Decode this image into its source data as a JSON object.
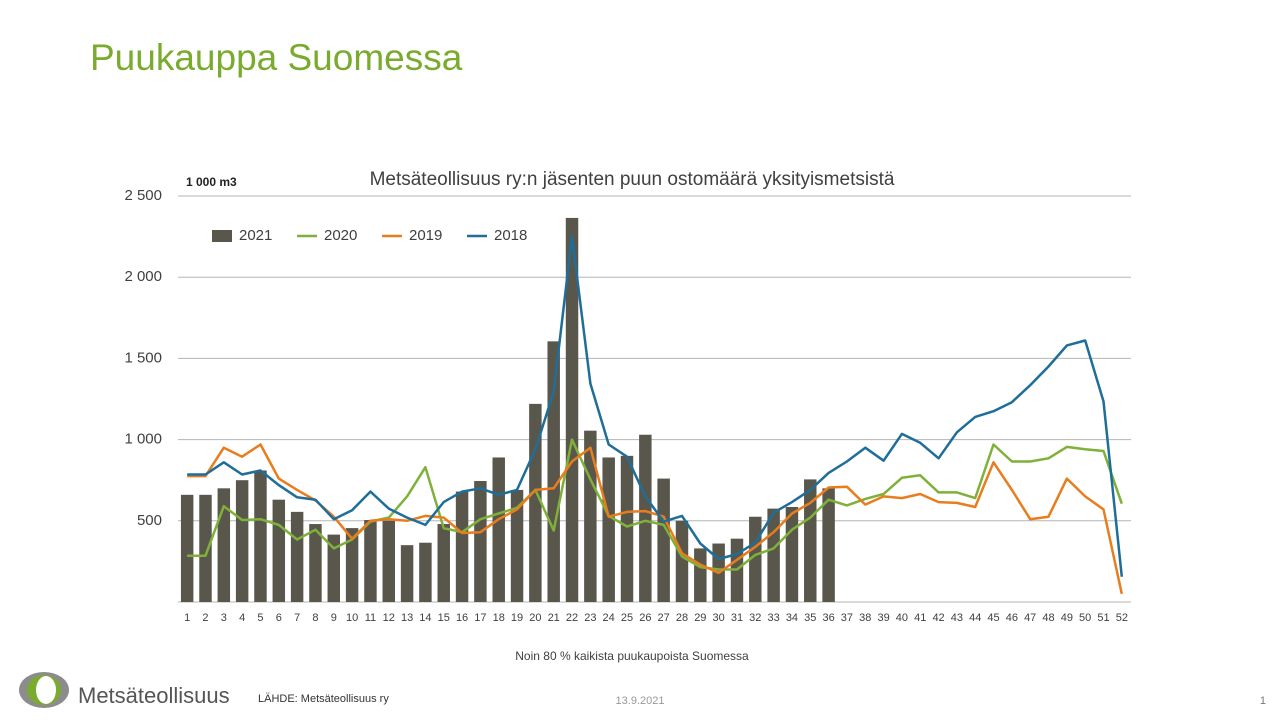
{
  "slide": {
    "title": "Puukauppa Suomessa",
    "logo_text": "Metsäteollisuus",
    "source": "LÄHDE:  Metsäteollisuus ry",
    "date": "13.9.2021",
    "page_number": "1"
  },
  "chart_data": {
    "type": "bar",
    "title": "Metsäteollisuus ry:n jäsenten puun ostomäärä yksityismetsistä",
    "unit_label": "1 000 m3",
    "x_label": "Noin 80 % kaikista puukaupoista Suomessa",
    "categories": [
      "1",
      "2",
      "3",
      "4",
      "5",
      "6",
      "7",
      "8",
      "9",
      "10",
      "11",
      "12",
      "13",
      "14",
      "15",
      "16",
      "17",
      "18",
      "19",
      "20",
      "21",
      "22",
      "23",
      "24",
      "25",
      "26",
      "27",
      "28",
      "29",
      "30",
      "31",
      "32",
      "33",
      "34",
      "35",
      "36",
      "37",
      "38",
      "39",
      "40",
      "41",
      "42",
      "43",
      "44",
      "45",
      "46",
      "47",
      "48",
      "49",
      "50",
      "51",
      "52"
    ],
    "series": [
      {
        "name": "2021",
        "type": "bar",
        "color": "#59574b",
        "values": [
          660,
          660,
          700,
          750,
          810,
          630,
          555,
          480,
          415,
          455,
          505,
          500,
          350,
          365,
          480,
          680,
          745,
          890,
          690,
          1220,
          1605,
          2365,
          1055,
          890,
          900,
          1030,
          760,
          500,
          330,
          360,
          390,
          525,
          575,
          585,
          755,
          700,
          null,
          null,
          null,
          null,
          null,
          null,
          null,
          null,
          null,
          null,
          null,
          null,
          null,
          null,
          null,
          null
        ]
      },
      {
        "name": "2020",
        "type": "line",
        "color": "#7fb13a",
        "values": [
          285,
          285,
          590,
          505,
          510,
          475,
          385,
          445,
          330,
          385,
          495,
          520,
          650,
          830,
          455,
          430,
          510,
          545,
          580,
          690,
          440,
          1000,
          755,
          530,
          465,
          500,
          475,
          280,
          215,
          200,
          200,
          290,
          330,
          445,
          520,
          630,
          595,
          635,
          665,
          765,
          780,
          675,
          675,
          640,
          970,
          865,
          865,
          885,
          955,
          940,
          930,
          605
        ]
      },
      {
        "name": "2019",
        "type": "line",
        "color": "#e87d1e",
        "values": [
          775,
          775,
          950,
          895,
          970,
          760,
          690,
          625,
          525,
          390,
          500,
          510,
          500,
          530,
          520,
          425,
          430,
          510,
          570,
          690,
          700,
          865,
          950,
          525,
          555,
          560,
          525,
          300,
          230,
          180,
          260,
          340,
          430,
          545,
          610,
          705,
          710,
          600,
          650,
          640,
          665,
          615,
          610,
          585,
          860,
          690,
          510,
          525,
          760,
          650,
          570,
          50
        ]
      },
      {
        "name": "2018",
        "type": "line",
        "color": "#1f6e99",
        "values": [
          785,
          785,
          860,
          785,
          810,
          720,
          645,
          630,
          510,
          565,
          680,
          575,
          520,
          475,
          615,
          680,
          700,
          660,
          690,
          940,
          1295,
          2250,
          1345,
          970,
          895,
          650,
          495,
          530,
          360,
          265,
          295,
          365,
          550,
          615,
          690,
          795,
          865,
          950,
          870,
          1035,
          980,
          885,
          1045,
          1140,
          1175,
          1230,
          1335,
          1450,
          1580,
          1610,
          1235,
          155
        ]
      }
    ],
    "ylim": [
      0,
      2500
    ],
    "yticks": [
      500,
      {
        "value": 1000,
        "label": "1 000"
      },
      {
        "value": 1500,
        "label": "1 500"
      },
      {
        "value": 2000,
        "label": "2 000"
      },
      {
        "value": 2500,
        "label": "2 500"
      }
    ],
    "grid": true,
    "legend": "upper left"
  }
}
